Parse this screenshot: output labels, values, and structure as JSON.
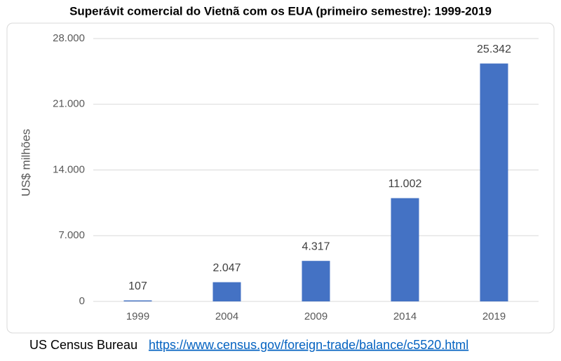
{
  "chart_data": {
    "type": "bar",
    "title": "Superávit comercial do Vietnã com os EUA (primeiro semestre): 1999-2019",
    "y_label": "US$ milhões",
    "categories": [
      "1999",
      "2004",
      "2009",
      "2014",
      "2019"
    ],
    "values": [
      107,
      2047,
      4317,
      11002,
      25342
    ],
    "value_labels": [
      "107",
      "2.047",
      "4.317",
      "11.002",
      "25.342"
    ],
    "color": "#4472c4",
    "ylim": [
      0,
      28000
    ],
    "yticks": [
      0,
      {
        "value": 7000,
        "label": "7.000"
      },
      {
        "value": 14000,
        "label": "14.000"
      },
      {
        "value": 21000,
        "label": "21.000"
      },
      {
        "value": 28000,
        "label": "28.000"
      }
    ],
    "grid": true,
    "source": {
      "text": "US Census Bureau",
      "url": "https://www.census.gov/foreign-trade/balance/c5520.html"
    }
  }
}
